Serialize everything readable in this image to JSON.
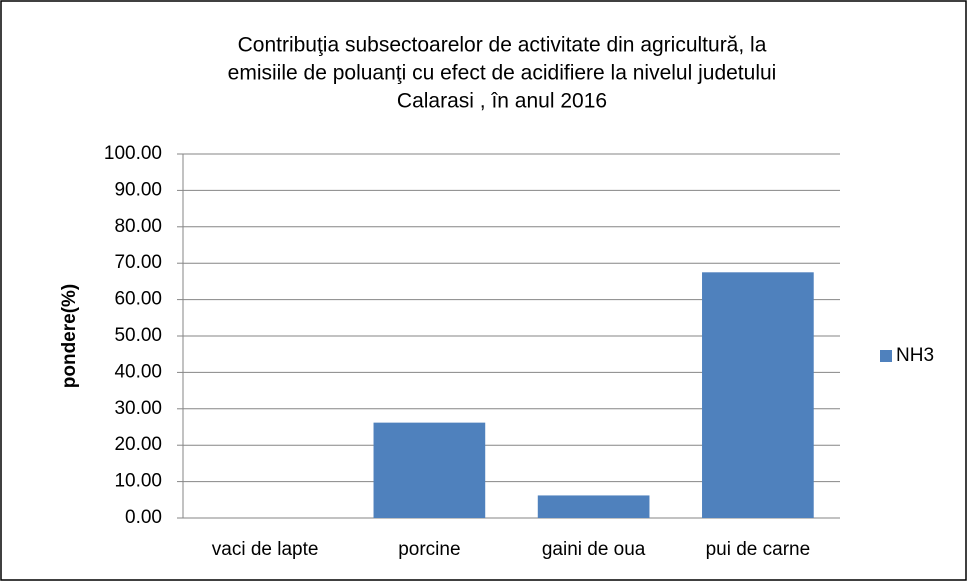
{
  "chart_data": {
    "type": "bar",
    "title": [
      "Contribuţia subsectoarelor de activitate din agricultură, la",
      "emisiile de poluanţi cu efect de acidifiere la nivelul judetului",
      "Calarasi , în anul 2016"
    ],
    "y_label": "pondere(%)",
    "categories": [
      "vaci de lapte",
      "porcine",
      "gaini de oua",
      "pui de carne"
    ],
    "series": [
      {
        "name": "NH3",
        "color": "#4f81bd",
        "values": [
          0,
          26.2,
          6.2,
          67.5
        ]
      }
    ],
    "ylim": [
      0,
      100
    ],
    "yticks": [
      {
        "value": 0,
        "label": "0.00"
      },
      {
        "value": 10,
        "label": "10.00"
      },
      {
        "value": 20,
        "label": "20.00"
      },
      {
        "value": 30,
        "label": "30.00"
      },
      {
        "value": 40,
        "label": "40.00"
      },
      {
        "value": 50,
        "label": "50.00"
      },
      {
        "value": 60,
        "label": "60.00"
      },
      {
        "value": 70,
        "label": "70.00"
      },
      {
        "value": 80,
        "label": "80.00"
      },
      {
        "value": 90,
        "label": "90.00"
      },
      {
        "value": 100,
        "label": "100.00"
      }
    ],
    "grid": true,
    "legend": "right"
  }
}
